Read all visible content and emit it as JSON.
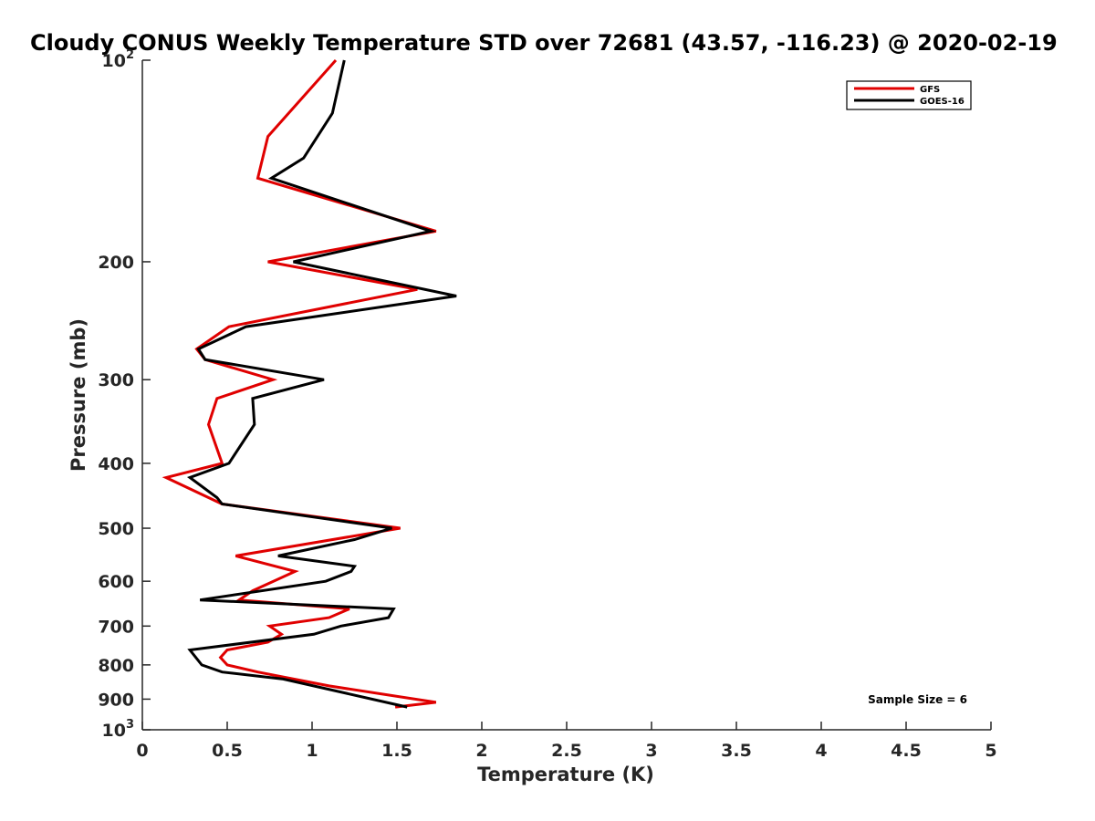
{
  "chart_data": {
    "type": "line",
    "title": "Cloudy CONUS Weekly Temperature STD over 72681 (43.57, -116.23) @ 2020-02-19",
    "xlabel": "Temperature (K)",
    "ylabel": "Pressure (mb)",
    "xlim": [
      0,
      5
    ],
    "ylim": [
      100,
      1000
    ],
    "y_scale": "log",
    "y_reversed": true,
    "x_ticks": [
      "0",
      "0.5",
      "1",
      "1.5",
      "2",
      "2.5",
      "3",
      "3.5",
      "4",
      "4.5",
      "5"
    ],
    "y_ticks": [
      {
        "value": 100,
        "base": "10",
        "exp": "2"
      },
      {
        "value": 200,
        "label": "200"
      },
      {
        "value": 300,
        "label": "300"
      },
      {
        "value": 400,
        "label": "400"
      },
      {
        "value": 500,
        "label": "500"
      },
      {
        "value": 600,
        "label": "600"
      },
      {
        "value": 700,
        "label": "700"
      },
      {
        "value": 800,
        "label": "800"
      },
      {
        "value": 900,
        "label": "900"
      },
      {
        "value": 1000,
        "base": "10",
        "exp": "3"
      }
    ],
    "legend_position": "top-right",
    "annotation": "Sample Size = 6",
    "series": [
      {
        "name": "GFS",
        "color": "#e00000",
        "points": [
          [
            1.14,
            100
          ],
          [
            0.74,
            130
          ],
          [
            0.68,
            150
          ],
          [
            1.73,
            180
          ],
          [
            0.74,
            200
          ],
          [
            1.62,
            220
          ],
          [
            0.51,
            250
          ],
          [
            0.32,
            270
          ],
          [
            0.37,
            280
          ],
          [
            0.77,
            300
          ],
          [
            0.44,
            320
          ],
          [
            0.39,
            350
          ],
          [
            0.47,
            400
          ],
          [
            0.14,
            420
          ],
          [
            0.47,
            460
          ],
          [
            1.52,
            500
          ],
          [
            0.55,
            550
          ],
          [
            0.9,
            580
          ],
          [
            0.65,
            620
          ],
          [
            0.57,
            640
          ],
          [
            1.22,
            660
          ],
          [
            1.1,
            680
          ],
          [
            0.75,
            700
          ],
          [
            0.82,
            720
          ],
          [
            0.74,
            740
          ],
          [
            0.5,
            760
          ],
          [
            0.46,
            780
          ],
          [
            0.5,
            800
          ],
          [
            0.68,
            820
          ],
          [
            1.1,
            860
          ],
          [
            1.73,
            910
          ],
          [
            1.49,
            925
          ]
        ]
      },
      {
        "name": "GOES-16",
        "color": "#000000",
        "points": [
          [
            1.19,
            100
          ],
          [
            1.12,
            120
          ],
          [
            0.95,
            140
          ],
          [
            0.76,
            150
          ],
          [
            1.7,
            180
          ],
          [
            0.89,
            200
          ],
          [
            1.85,
            225
          ],
          [
            0.61,
            250
          ],
          [
            0.33,
            270
          ],
          [
            0.37,
            280
          ],
          [
            1.07,
            300
          ],
          [
            0.65,
            320
          ],
          [
            0.66,
            350
          ],
          [
            0.51,
            400
          ],
          [
            0.28,
            420
          ],
          [
            0.44,
            450
          ],
          [
            0.47,
            460
          ],
          [
            1.47,
            500
          ],
          [
            1.25,
            520
          ],
          [
            0.8,
            550
          ],
          [
            1.25,
            570
          ],
          [
            1.23,
            580
          ],
          [
            1.08,
            600
          ],
          [
            0.34,
            640
          ],
          [
            1.48,
            660
          ],
          [
            1.45,
            680
          ],
          [
            1.17,
            700
          ],
          [
            1.01,
            720
          ],
          [
            0.28,
            760
          ],
          [
            0.35,
            800
          ],
          [
            0.47,
            820
          ],
          [
            0.83,
            840
          ],
          [
            1.56,
            925
          ]
        ]
      }
    ]
  }
}
